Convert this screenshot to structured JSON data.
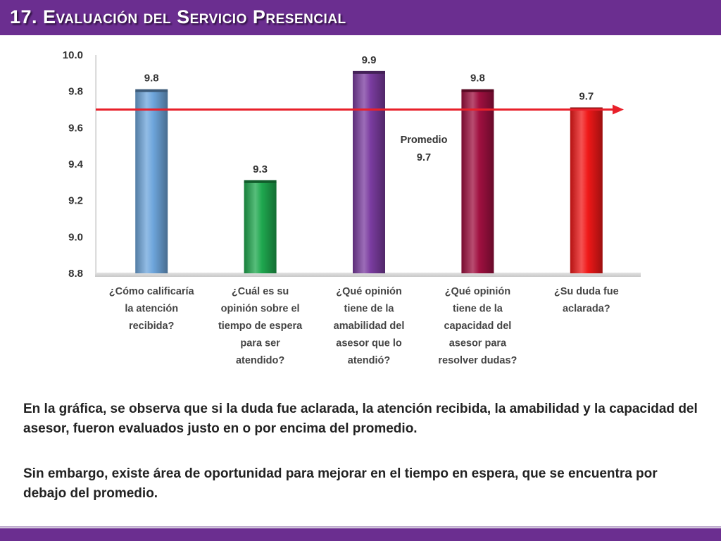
{
  "header": {
    "title": "17. Evaluación del Servicio Presencial"
  },
  "chart_data": {
    "type": "bar",
    "categories": [
      [
        "¿Cómo calificaría",
        "la atención",
        "recibida?"
      ],
      [
        "¿Cuál es su",
        "opinión sobre el",
        "tiempo de espera",
        "para ser",
        "atendido?"
      ],
      [
        "¿Qué opinión",
        "tiene de la",
        "amabilidad del",
        "asesor que lo",
        "atendió?"
      ],
      [
        "¿Qué opinión",
        "tiene de la",
        "capacidad del",
        "asesor para",
        "resolver dudas?"
      ],
      [
        "¿Su duda fue",
        "aclarada?"
      ]
    ],
    "values": [
      9.8,
      9.3,
      9.9,
      9.8,
      9.7
    ],
    "value_labels": [
      "9.8",
      "9.3",
      "9.9",
      "9.8",
      "9.7"
    ],
    "bar_colors": [
      "#6ea6dc",
      "#1fa84f",
      "#7b3ca0",
      "#a01040",
      "#f01818"
    ],
    "ylim": [
      8.8,
      10.0
    ],
    "yticks": [
      "8.8",
      "9.0",
      "9.2",
      "9.4",
      "9.6",
      "9.8",
      "10.0"
    ],
    "average": {
      "label": "Promedio",
      "value_label": "9.7",
      "value": 9.7,
      "color": "#e8202a"
    },
    "grid": false,
    "title": "",
    "xlabel": "",
    "ylabel": ""
  },
  "text": {
    "paragraph1": "En la gráfica, se observa que si la duda fue aclarada, la atención recibida, la amabilidad y la capacidad del asesor, fueron evaluados justo en o por encima del promedio.",
    "paragraph2": "Sin embargo, existe área de oportunidad para mejorar en el tiempo en espera, que se encuentra por debajo del promedio."
  }
}
